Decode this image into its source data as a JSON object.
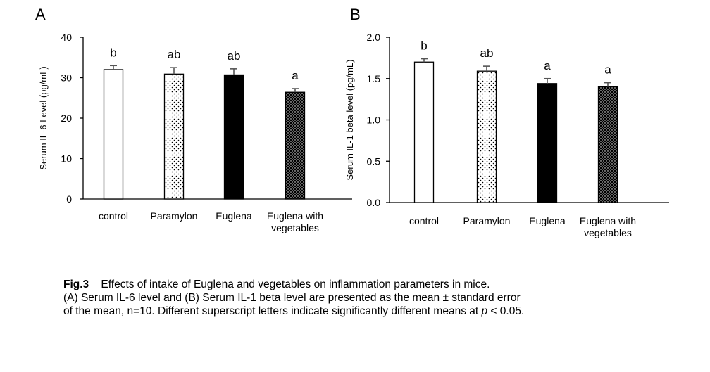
{
  "chart_data": [
    {
      "type": "bar",
      "panel_label": "A",
      "ylabel": "Serum IL-6 Level (pg/mL)",
      "ylim": [
        0,
        40
      ],
      "yticks": [
        "0",
        "10",
        "20",
        "30",
        "40"
      ],
      "categories": [
        "control",
        "Paramylon",
        "Euglena",
        "Euglena with vegetables"
      ],
      "category_lines": [
        [
          "control"
        ],
        [
          "Paramylon"
        ],
        [
          "Euglena"
        ],
        [
          "Euglena with",
          "vegetables"
        ]
      ],
      "values": [
        32.0,
        30.9,
        30.7,
        26.4
      ],
      "errors": [
        1.0,
        1.6,
        1.5,
        0.9
      ],
      "letters": [
        "b",
        "ab",
        "ab",
        "a"
      ],
      "fills": [
        "white",
        "dots-sparse",
        "black",
        "dots-dense"
      ]
    },
    {
      "type": "bar",
      "panel_label": "B",
      "ylabel": "Serum IL-1 beta level (pg/mL)",
      "ylim": [
        0,
        2.0
      ],
      "yticks": [
        "0.0",
        "0.5",
        "1.0",
        "1.5",
        "2.0"
      ],
      "categories": [
        "control",
        "Paramylon",
        "Euglena",
        "Euglena with vegetables"
      ],
      "category_lines": [
        [
          "control"
        ],
        [
          "Paramylon"
        ],
        [
          "Euglena"
        ],
        [
          "Euglena with",
          "vegetables"
        ]
      ],
      "values": [
        1.7,
        1.59,
        1.44,
        1.4
      ],
      "errors": [
        0.04,
        0.06,
        0.06,
        0.05
      ],
      "letters": [
        "b",
        "ab",
        "a",
        "a"
      ],
      "fills": [
        "white",
        "dots-sparse",
        "black",
        "dots-dense"
      ]
    }
  ],
  "caption": {
    "fig_label": "Fig.3",
    "title": "Effects of intake of Euglena and vegetables on inflammation parameters in mice.",
    "line2": "(A) Serum IL-6 level and (B) Serum IL-1 beta level are presented as the mean ± standard error",
    "line3_a": "of the mean, n=10. Different superscript letters indicate significantly different means at ",
    "line3_p": "p",
    "line3_b": " < 0.05."
  },
  "colors": {
    "axis": "#000000",
    "error_bar": "#555555",
    "bar_outline": "#000000"
  }
}
